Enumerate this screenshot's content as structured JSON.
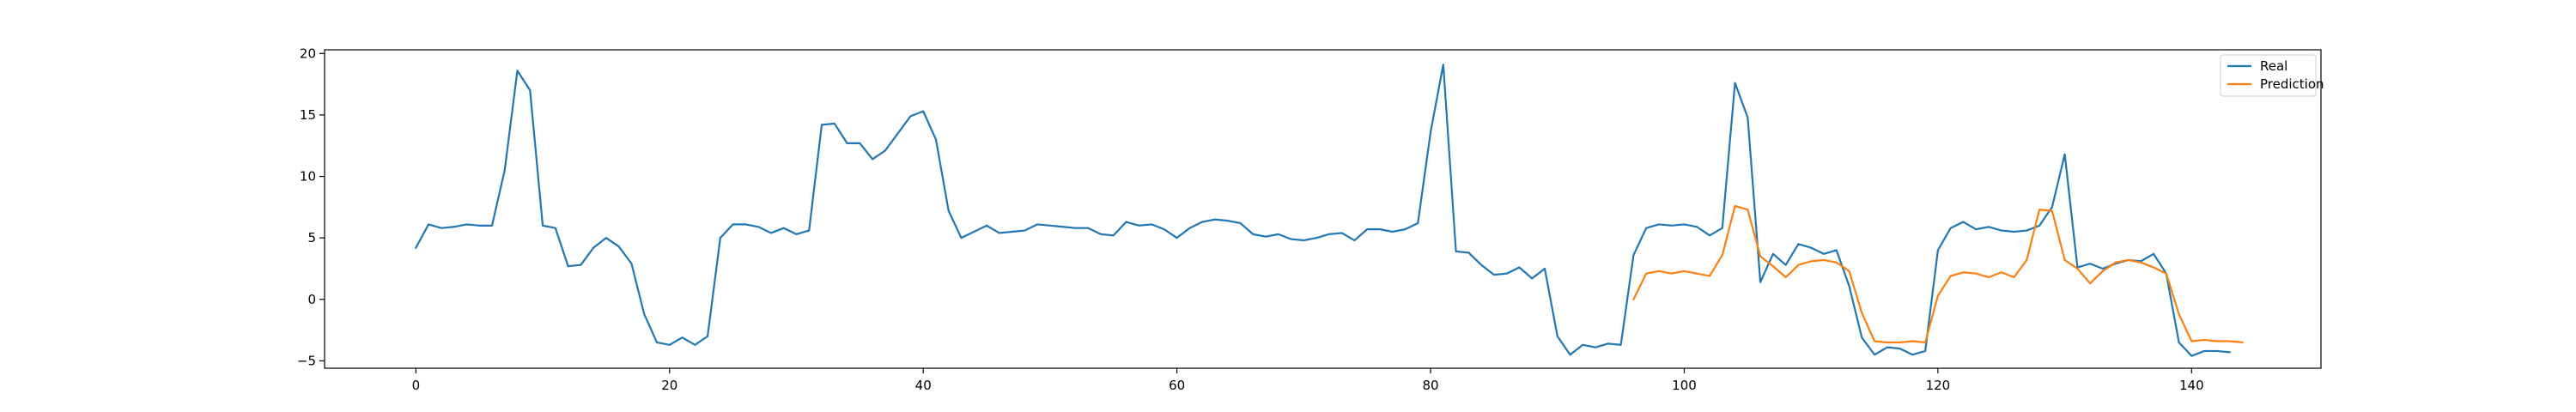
{
  "chart_data": {
    "type": "line",
    "title": "",
    "xlabel": "",
    "ylabel": "",
    "xlim": [
      -7.2,
      150.2
    ],
    "ylim": [
      -5.6,
      20.3
    ],
    "xticks": [
      0,
      20,
      40,
      60,
      80,
      100,
      120,
      140
    ],
    "yticks": [
      -5,
      0,
      5,
      10,
      15,
      20
    ],
    "xtick_labels": [
      "0",
      "20",
      "40",
      "60",
      "80",
      "100",
      "120",
      "140"
    ],
    "ytick_labels": [
      "−5",
      "0",
      "5",
      "10",
      "15",
      "20"
    ],
    "grid": false,
    "legend_position": "top-right",
    "series": [
      {
        "name": "Real",
        "color": "#1f77b4",
        "x_start": 0,
        "values": [
          4.2,
          6.1,
          5.8,
          5.9,
          6.1,
          6.0,
          6.0,
          10.5,
          18.6,
          17.0,
          6.0,
          5.8,
          2.7,
          2.8,
          4.2,
          5.0,
          4.3,
          2.9,
          -1.2,
          -3.5,
          -3.7,
          -3.1,
          -3.7,
          -3.0,
          5.0,
          6.1,
          6.1,
          5.9,
          5.4,
          5.8,
          5.3,
          5.6,
          14.2,
          14.3,
          12.7,
          12.7,
          11.4,
          12.1,
          13.5,
          14.9,
          15.3,
          13.0,
          7.2,
          5.0,
          5.5,
          6.0,
          5.4,
          5.5,
          5.6,
          6.1,
          6.0,
          5.9,
          5.8,
          5.8,
          5.3,
          5.2,
          6.3,
          6.0,
          6.1,
          5.7,
          5.0,
          5.8,
          6.3,
          6.5,
          6.4,
          6.2,
          5.3,
          5.1,
          5.3,
          4.9,
          4.8,
          5.0,
          5.3,
          5.4,
          4.8,
          5.7,
          5.7,
          5.5,
          5.7,
          6.2,
          13.6,
          19.1,
          3.9,
          3.8,
          2.8,
          2.0,
          2.1,
          2.6,
          1.7,
          2.5,
          -3.0,
          -4.5,
          -3.7,
          -3.9,
          -3.6,
          -3.7,
          3.6,
          5.8,
          6.1,
          6.0,
          6.1,
          5.9,
          5.2,
          5.8,
          17.6,
          14.8,
          1.4,
          3.7,
          2.8,
          4.5,
          4.2,
          3.7,
          4.0,
          1.1,
          -3.1,
          -4.5,
          -3.9,
          -4.0,
          -4.5,
          -4.2,
          4.0,
          5.8,
          6.3,
          5.7,
          5.9,
          5.6,
          5.5,
          5.6,
          6.0,
          7.5,
          11.8,
          2.6,
          2.9,
          2.5,
          2.9,
          3.2,
          3.1,
          3.7,
          2.1,
          -3.5,
          -4.6,
          -4.2,
          -4.2,
          -4.3
        ]
      },
      {
        "name": "Prediction",
        "color": "#ff7f0e",
        "x_start": 96,
        "values": [
          0.0,
          2.1,
          2.3,
          2.1,
          2.3,
          2.1,
          1.9,
          3.6,
          7.6,
          7.3,
          3.5,
          2.7,
          1.8,
          2.8,
          3.1,
          3.2,
          3.0,
          2.3,
          -1.1,
          -3.4,
          -3.5,
          -3.5,
          -3.4,
          -3.5,
          0.3,
          1.9,
          2.2,
          2.1,
          1.8,
          2.2,
          1.8,
          3.2,
          7.3,
          7.2,
          3.2,
          2.5,
          1.3,
          2.3,
          3.0,
          3.2,
          3.0,
          2.6,
          2.1,
          -1.2,
          -3.4,
          -3.3,
          -3.4,
          -3.4,
          -3.5
        ]
      }
    ]
  }
}
